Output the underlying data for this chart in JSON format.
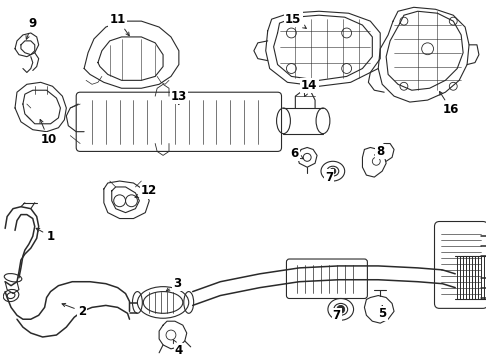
{
  "bg": "#ffffff",
  "lc": "#2a2a2a",
  "fig_w": 4.89,
  "fig_h": 3.6,
  "dpi": 100
}
